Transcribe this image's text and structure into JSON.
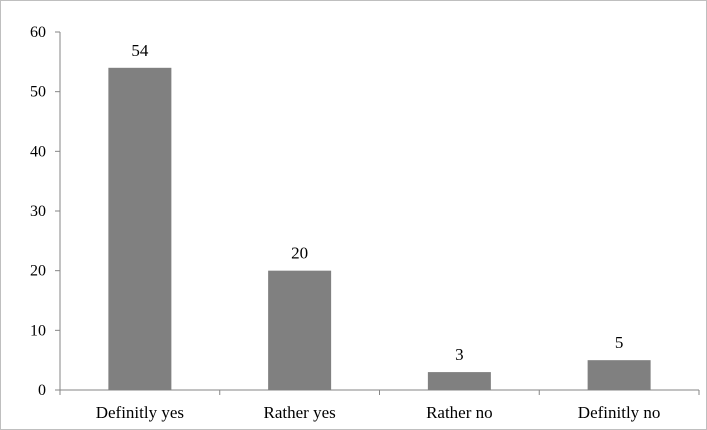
{
  "chart_data": {
    "type": "bar",
    "categories": [
      "Definitly yes",
      "Rather yes",
      "Rather no",
      "Definitly no"
    ],
    "values": [
      54,
      20,
      3,
      5
    ],
    "data_labels": [
      "54",
      "20",
      "3",
      "5"
    ],
    "yticks": [
      "0",
      "10",
      "20",
      "30",
      "40",
      "50",
      "60"
    ],
    "ylim": [
      0,
      60
    ],
    "title": "",
    "xlabel": "",
    "ylabel": "",
    "grid": false,
    "bar_color": "#808080",
    "axis_color": "#868686"
  }
}
